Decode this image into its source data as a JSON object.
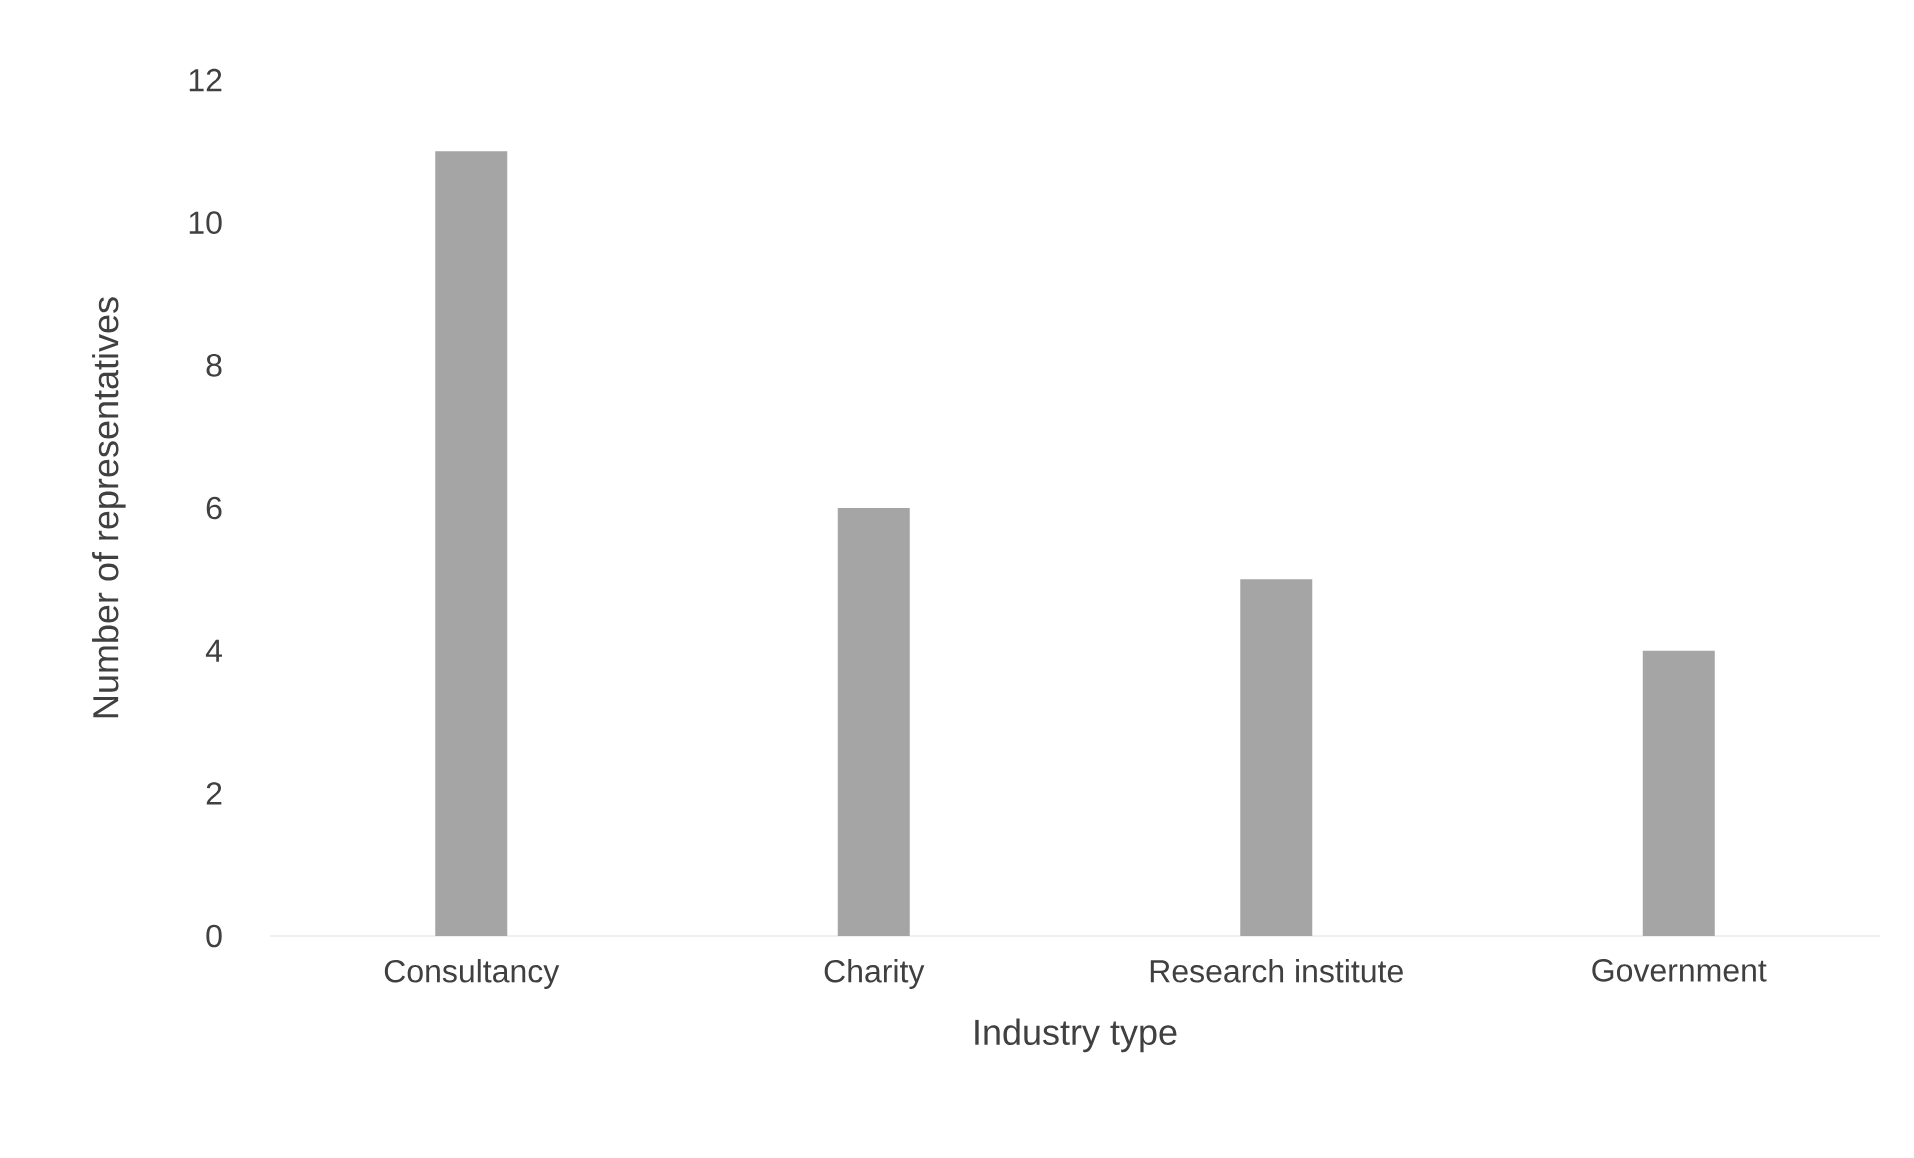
{
  "chart_data": {
    "type": "bar",
    "xlabel": "Industry type",
    "ylabel": "Number of representatives",
    "categories": [
      "Consultancy",
      "Charity",
      "Research institute",
      "Government"
    ],
    "values": [
      11,
      6,
      5,
      4
    ],
    "color": "#a5a5a5",
    "ylim": [
      0,
      12
    ],
    "yticks": [
      0,
      2,
      4,
      6,
      8,
      10,
      12
    ]
  }
}
